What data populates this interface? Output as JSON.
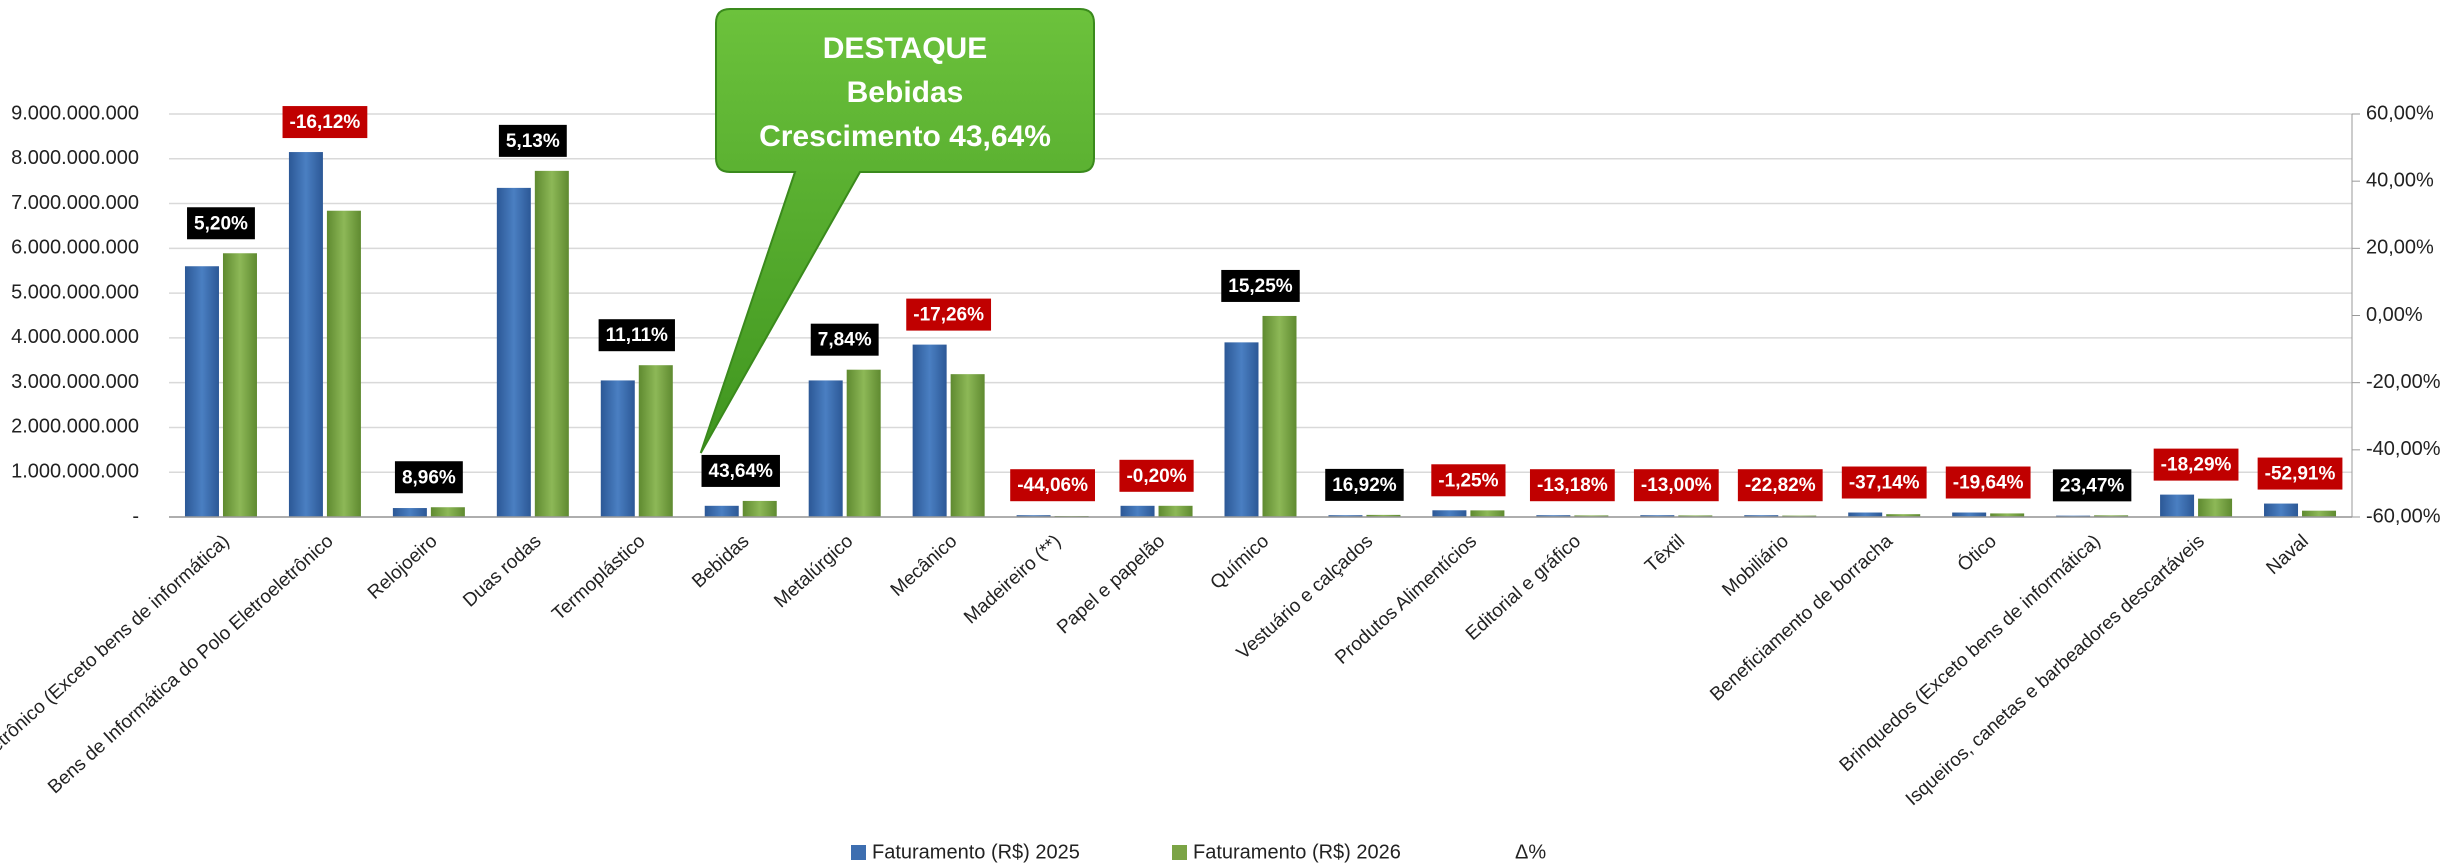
{
  "chart_data": {
    "type": "bar",
    "categories": [
      "Eletroeletrônico (Exceto bens de informática)",
      "Bens de Informática do Polo Eletroeletrônico",
      "Relojoeiro",
      "Duas rodas",
      "Termoplástico",
      "Bebidas",
      "Metalúrgico",
      "Mecânico",
      "Madeireiro (**)",
      "Papel e papelão",
      "Químico",
      "Vestuário e calçados",
      "Produtos Alimentícios",
      "Editorial e gráfico",
      "Têxtil",
      "Mobiliário",
      "Beneficiamento de borracha",
      "Ótico",
      "Brinquedos (Exceto bens de informática)",
      "Isqueiros, canetas e barbeadores descartáveis",
      "Naval"
    ],
    "series": [
      {
        "name": "Faturamento (R$) 2025",
        "color": "#3d6eb0",
        "values": [
          5600000000,
          8150000000,
          200000000,
          7350000000,
          3050000000,
          250000000,
          3050000000,
          3850000000,
          40000000,
          250000000,
          3900000000,
          40000000,
          150000000,
          40000000,
          40000000,
          40000000,
          100000000,
          100000000,
          30000000,
          500000000,
          300000000
        ]
      },
      {
        "name": "Faturamento (R$) 2026",
        "color": "#7ba445",
        "values": [
          5890000000,
          6840000000,
          218000000,
          7730000000,
          3390000000,
          359000000,
          3290000000,
          3190000000,
          22000000,
          250000000,
          4490000000,
          47000000,
          148000000,
          35000000,
          35000000,
          31000000,
          63000000,
          80000000,
          37000000,
          410000000,
          141000000
        ]
      },
      {
        "name": "Δ%",
        "axis": "y2",
        "positive_color": "#000000",
        "negative_color": "#c00000",
        "values": [
          5.2,
          -16.12,
          8.96,
          5.13,
          11.11,
          43.64,
          7.84,
          -17.26,
          -44.06,
          -0.2,
          15.25,
          16.92,
          -1.25,
          -13.18,
          -13.0,
          -22.82,
          -37.14,
          -19.64,
          23.47,
          -18.29,
          -52.91
        ],
        "value_labels": [
          "5,20%",
          "-16,12%",
          "8,96%",
          "5,13%",
          "11,11%",
          "43,64%",
          "7,84%",
          "-17,26%",
          "-44,06%",
          "-0,20%",
          "15,25%",
          "16,92%",
          "-1,25%",
          "-13,18%",
          "-13,00%",
          "-22,82%",
          "-37,14%",
          "-19,64%",
          "23,47%",
          "-18,29%",
          "-52,91%"
        ]
      }
    ],
    "ylim": [
      0,
      9000000000
    ],
    "yticks": [
      {
        "value": 0,
        "label": "-"
      },
      {
        "value": 1000000000,
        "label": "1.000.000.000"
      },
      {
        "value": 2000000000,
        "label": "2.000.000.000"
      },
      {
        "value": 3000000000,
        "label": "3.000.000.000"
      },
      {
        "value": 4000000000,
        "label": "4.000.000.000"
      },
      {
        "value": 5000000000,
        "label": "5.000.000.000"
      },
      {
        "value": 6000000000,
        "label": "6.000.000.000"
      },
      {
        "value": 7000000000,
        "label": "7.000.000.000"
      },
      {
        "value": 8000000000,
        "label": "8.000.000.000"
      },
      {
        "value": 9000000000,
        "label": "9.000.000.000"
      }
    ],
    "y2lim": [
      -60,
      60
    ],
    "y2ticks": [
      {
        "value": -60,
        "label": "-60,00%"
      },
      {
        "value": -40,
        "label": "-40,00%"
      },
      {
        "value": -20,
        "label": "-20,00%"
      },
      {
        "value": 0,
        "label": "0,00%"
      },
      {
        "value": 20,
        "label": "20,00%"
      },
      {
        "value": 40,
        "label": "40,00%"
      },
      {
        "value": 60,
        "label": "60,00%"
      }
    ],
    "grid": true,
    "legend": "bottom",
    "annotation": {
      "lines": [
        "DESTAQUE",
        "Bebidas",
        "Crescimento 43,64%"
      ],
      "category": 5,
      "color": "#52a82a"
    }
  }
}
